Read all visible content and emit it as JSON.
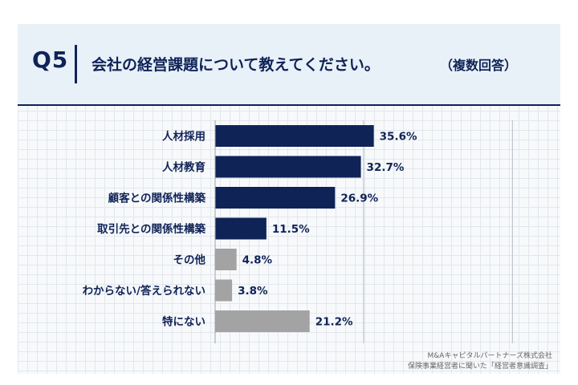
{
  "header": {
    "q_label": "Q5",
    "title": "会社の経営課題について教えてください。",
    "note": "（複数回答）"
  },
  "colors": {
    "navy": "#0f2357",
    "gray": "#a3a3a3",
    "header_bg": "#e8f1f8"
  },
  "chart_data": {
    "type": "bar",
    "orientation": "horizontal",
    "categories": [
      "人材採用",
      "人材教育",
      "顧客との関係性構築",
      "取引先との関係性構築",
      "その他",
      "わからない/答えられない",
      "特にない"
    ],
    "values": [
      35.6,
      32.7,
      26.9,
      11.5,
      4.8,
      3.8,
      21.2
    ],
    "value_labels": [
      "35.6%",
      "32.7%",
      "26.9%",
      "11.5%",
      "4.8%",
      "3.8%",
      "21.2%"
    ],
    "bar_colors": [
      "#0f2357",
      "#0f2357",
      "#0f2357",
      "#0f2357",
      "#a3a3a3",
      "#a3a3a3",
      "#a3a3a3"
    ],
    "xlim": [
      0,
      67
    ],
    "gridlines": [
      33.3,
      66.7
    ],
    "grid": true,
    "legend": "none"
  },
  "footer": {
    "line1": "M&Aキャピタルパートナーズ株式会社",
    "line2": "保険事業経営者に聞いた「経営者意識調査」"
  }
}
